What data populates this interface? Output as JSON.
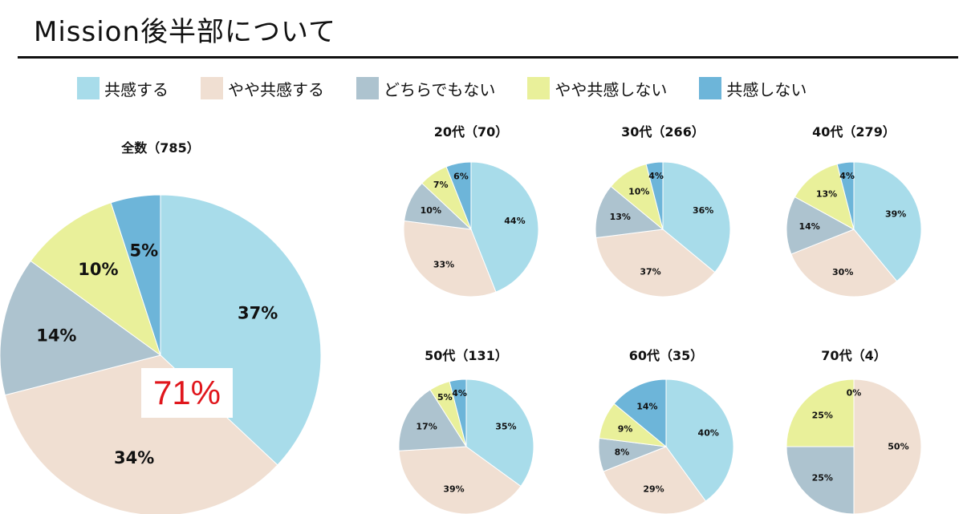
{
  "page": {
    "title": "Mission後半部について"
  },
  "legend": [
    {
      "label": "共感する",
      "color": "#a8dcea"
    },
    {
      "label": "やや共感する",
      "color": "#f0dfd2"
    },
    {
      "label": "どちらでもない",
      "color": "#adc3cf"
    },
    {
      "label": "やや共感しない",
      "color": "#e9f09a"
    },
    {
      "label": "共感しない",
      "color": "#6db5d9"
    }
  ],
  "callout": {
    "text": "71%",
    "color": "#e0161c"
  },
  "chart_data": [
    {
      "type": "pie",
      "title": "全数（785）",
      "categories": [
        "共感する",
        "やや共感する",
        "どちらでもない",
        "やや共感しない",
        "共感しない"
      ],
      "values": [
        37,
        34,
        14,
        10,
        5
      ],
      "labels": [
        "37%",
        "34%",
        "14%",
        "10%",
        "5%"
      ]
    },
    {
      "type": "pie",
      "title": "20代（70）",
      "categories": [
        "共感する",
        "やや共感する",
        "どちらでもない",
        "やや共感しない",
        "共感しない"
      ],
      "values": [
        44,
        33,
        10,
        7,
        6
      ],
      "labels": [
        "44%",
        "33%",
        "10%",
        "7%",
        "6%"
      ]
    },
    {
      "type": "pie",
      "title": "30代（266）",
      "categories": [
        "共感する",
        "やや共感する",
        "どちらでもない",
        "やや共感しない",
        "共感しない"
      ],
      "values": [
        36,
        37,
        13,
        10,
        4
      ],
      "labels": [
        "36%",
        "37%",
        "13%",
        "10%",
        "4%"
      ]
    },
    {
      "type": "pie",
      "title": "40代（279）",
      "categories": [
        "共感する",
        "やや共感する",
        "どちらでもない",
        "やや共感しない",
        "共感しない"
      ],
      "values": [
        39,
        30,
        14,
        13,
        4
      ],
      "labels": [
        "39%",
        "30%",
        "14%",
        "13%",
        "4%"
      ]
    },
    {
      "type": "pie",
      "title": "50代（131）",
      "categories": [
        "共感する",
        "やや共感する",
        "どちらでもない",
        "やや共感しない",
        "共感しない"
      ],
      "values": [
        35,
        39,
        17,
        5,
        4
      ],
      "labels": [
        "35%",
        "39%",
        "17%",
        "5%",
        "4%"
      ]
    },
    {
      "type": "pie",
      "title": "60代（35）",
      "categories": [
        "共感する",
        "やや共感する",
        "どちらでもない",
        "やや共感しない",
        "共感しない"
      ],
      "values": [
        40,
        29,
        8,
        9,
        14
      ],
      "labels": [
        "40%",
        "29%",
        "8%",
        "9%",
        "14%"
      ]
    },
    {
      "type": "pie",
      "title": "70代（4）",
      "categories": [
        "共感する",
        "やや共感する",
        "どちらでもない",
        "やや共感しない",
        "共感しない"
      ],
      "values": [
        0,
        50,
        25,
        25,
        0
      ],
      "labels": [
        "0%",
        "50%",
        "25%",
        "25%",
        "0%"
      ]
    }
  ]
}
